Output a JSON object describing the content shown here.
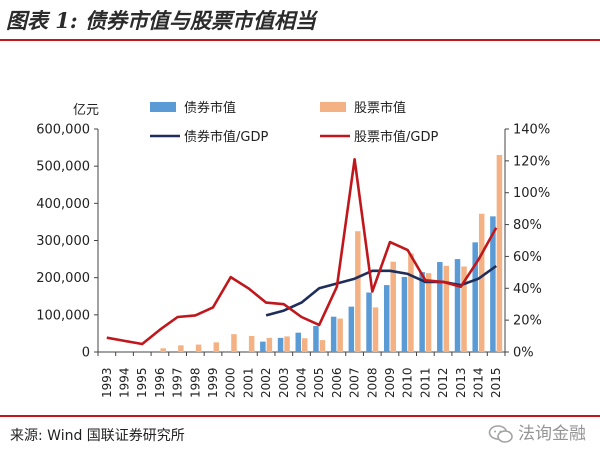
{
  "figure_title": "图表 1: 债券市值与股票市值相当",
  "source_text": "来源: Wind  国联证券研究所",
  "watermark_text": "法询金融",
  "colors": {
    "accent": "#c0171c",
    "bond_bar": "#5b9bd5",
    "stock_bar": "#f4b183",
    "bond_gdp_line": "#1f2d5a",
    "stock_gdp_line": "#c0171c"
  },
  "chart_data": {
    "type": "bar+line",
    "unit_label": "亿元",
    "categories": [
      "1993",
      "1994",
      "1995",
      "1996",
      "1997",
      "1998",
      "1999",
      "2000",
      "2001",
      "2002",
      "2003",
      "2004",
      "2005",
      "2006",
      "2007",
      "2008",
      "2009",
      "2010",
      "2011",
      "2012",
      "2013",
      "2014",
      "2015"
    ],
    "series": [
      {
        "name": "债券市值",
        "type": "bar",
        "axis": "left",
        "values": [
          0,
          0,
          0,
          0,
          0,
          0,
          0,
          0,
          0,
          28000,
          38000,
          52000,
          70000,
          95000,
          122000,
          160000,
          180000,
          202000,
          215000,
          242000,
          250000,
          295000,
          365000
        ]
      },
      {
        "name": "股票市值",
        "type": "bar",
        "axis": "left",
        "values": [
          0,
          0,
          0,
          10000,
          18000,
          20000,
          26000,
          48000,
          43000,
          38000,
          42000,
          37000,
          32000,
          90000,
          325000,
          120000,
          243000,
          265000,
          212000,
          232000,
          230000,
          372000,
          530000
        ]
      },
      {
        "name": "债券市值/GDP",
        "type": "line",
        "axis": "right",
        "values": [
          null,
          null,
          null,
          null,
          null,
          null,
          null,
          null,
          null,
          23,
          26,
          31,
          40,
          43,
          46,
          51,
          51,
          49,
          44,
          44,
          42,
          46,
          54
        ]
      },
      {
        "name": "股票市值/GDP",
        "type": "line",
        "axis": "right",
        "values": [
          9,
          7,
          5,
          14,
          22,
          23,
          28,
          47,
          40,
          31,
          30,
          22,
          17,
          41,
          121,
          38,
          69,
          64,
          45,
          44,
          41,
          58,
          78
        ]
      }
    ],
    "y_left": {
      "min": 0,
      "max": 600000,
      "ticks": [
        "0",
        "100,000",
        "200,000",
        "300,000",
        "400,000",
        "500,000",
        "600,000"
      ]
    },
    "y_right": {
      "min": 0,
      "max": 140,
      "ticks": [
        "0%",
        "20%",
        "40%",
        "60%",
        "80%",
        "100%",
        "120%",
        "140%"
      ]
    },
    "legend_position": "top",
    "grid": false
  }
}
